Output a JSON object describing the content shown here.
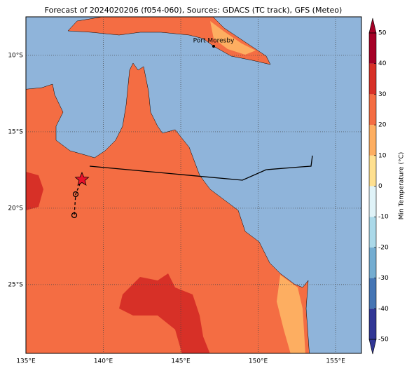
{
  "chart_data": {
    "type": "map",
    "title": "Forecast of 2024020206 (f054-060), Sources: GDACS (TC track), GFS (Meteo)",
    "xlim": [
      135,
      156.67
    ],
    "ylim": [
      -29.5,
      -7.48
    ],
    "xticks": [
      {
        "value": 135,
        "label": "135°E"
      },
      {
        "value": 140,
        "label": "140°E"
      },
      {
        "value": 145,
        "label": "145°E"
      },
      {
        "value": 150,
        "label": "150°E"
      },
      {
        "value": 155,
        "label": "155°E"
      }
    ],
    "yticks": [
      {
        "value": -10,
        "label": "10°S"
      },
      {
        "value": -15,
        "label": "15°S"
      },
      {
        "value": -20,
        "label": "20°S"
      },
      {
        "value": -25,
        "label": "25°S"
      }
    ],
    "grid": true,
    "place_label": "Port Moresby",
    "colorbar": {
      "label": "Min Temperature (°C)",
      "lim": [
        -50,
        50
      ],
      "ticks": [
        -50,
        -40,
        -30,
        -20,
        -10,
        0,
        10,
        20,
        30,
        40,
        50
      ],
      "colors": [
        "#313695",
        "#4575b4",
        "#74add1",
        "#abd9e9",
        "#e0f3f8",
        "#fee090",
        "#fdae61",
        "#f46d43",
        "#d73027",
        "#a50026"
      ]
    }
  }
}
